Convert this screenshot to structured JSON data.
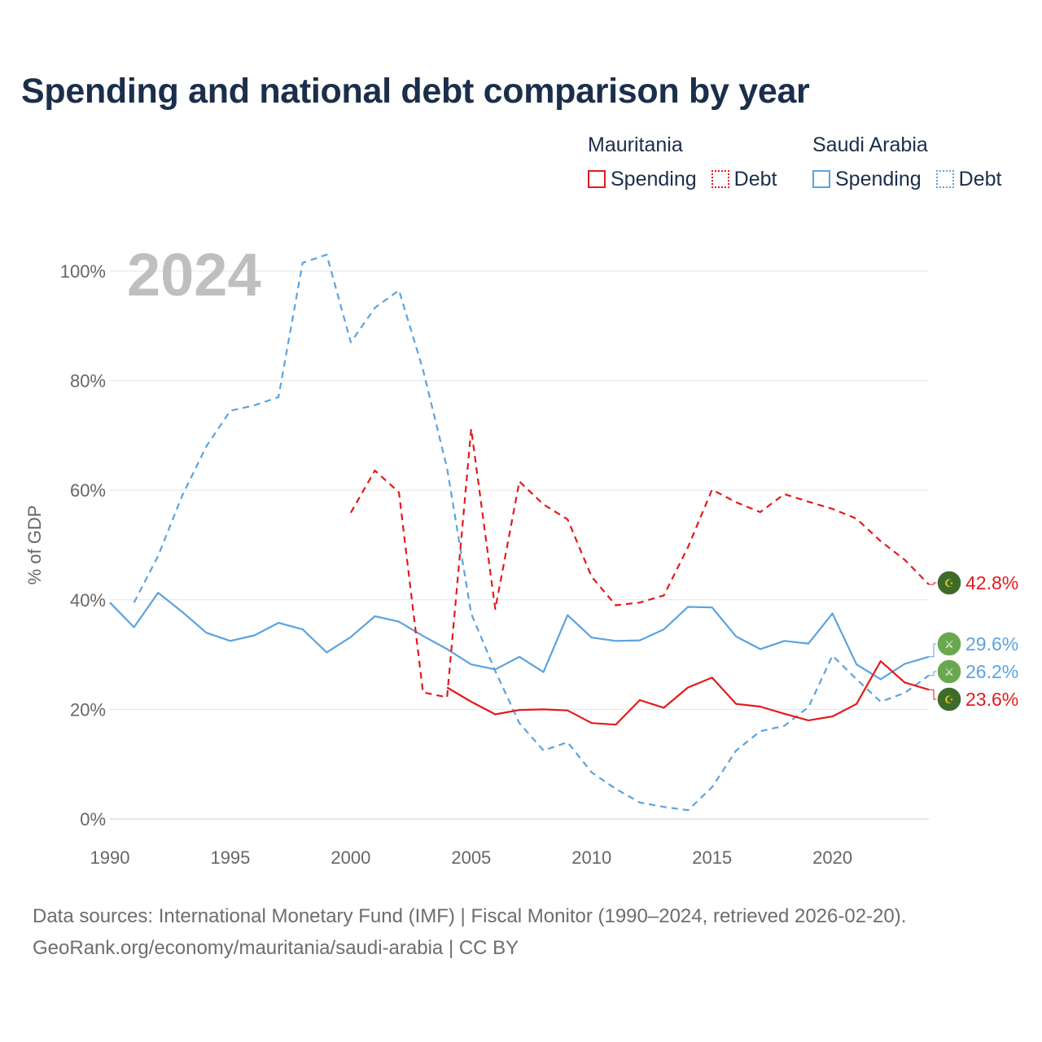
{
  "title": "Spending and national debt comparison by year",
  "legend": {
    "groups": [
      {
        "name": "Mauritania",
        "items": [
          "Spending",
          "Debt"
        ]
      },
      {
        "name": "Saudi Arabia",
        "items": [
          "Spending",
          "Debt"
        ]
      }
    ]
  },
  "colors": {
    "mauritania": "#e31a1c",
    "saudi_arabia": "#5ba3e0",
    "grid": "#e5e5e5",
    "axis_text": "#666666",
    "year_watermark": "#bfbfbf"
  },
  "footer": {
    "line1": "Data sources: International Monetary Fund (IMF) | Fiscal Monitor (1990–2024, retrieved 2026-02-20).",
    "line2": "GeoRank.org/economy/mauritania/saudi-arabia | CC BY"
  },
  "chart_data": {
    "type": "line",
    "year_label": "2024",
    "ylabel": "% of GDP",
    "xlabel": "",
    "xlim": [
      1990,
      2024
    ],
    "ylim": [
      0,
      105
    ],
    "xticks": [
      1990,
      1995,
      2000,
      2005,
      2010,
      2015,
      2020
    ],
    "yticks": [
      0,
      20,
      40,
      60,
      80,
      100
    ],
    "ytick_labels": [
      "0%",
      "20%",
      "40%",
      "60%",
      "80%",
      "100%"
    ],
    "series": [
      {
        "name": "Saudi Arabia Spending",
        "country": "Saudi Arabia",
        "metric": "Spending",
        "style": "solid",
        "color": "#5ba3e0",
        "x": [
          1990,
          1991,
          1992,
          1993,
          1994,
          1995,
          1996,
          1997,
          1998,
          1999,
          2000,
          2001,
          2002,
          2003,
          2004,
          2005,
          2006,
          2007,
          2008,
          2009,
          2010,
          2011,
          2012,
          2013,
          2014,
          2015,
          2016,
          2017,
          2018,
          2019,
          2020,
          2021,
          2022,
          2023,
          2024
        ],
        "values": [
          39.5,
          35.0,
          41.3,
          37.8,
          34.0,
          32.5,
          33.5,
          35.8,
          34.6,
          30.4,
          33.2,
          37.0,
          36.0,
          33.4,
          31.0,
          28.2,
          27.3,
          29.6,
          26.8,
          37.2,
          33.1,
          32.5,
          32.6,
          34.6,
          38.7,
          38.6,
          33.3,
          31.0,
          32.5,
          32.0,
          37.5,
          28.2,
          25.5,
          28.3,
          29.6
        ],
        "end_label": "29.6%"
      },
      {
        "name": "Saudi Arabia Debt",
        "country": "Saudi Arabia",
        "metric": "Debt",
        "style": "dashed",
        "color": "#5ba3e0",
        "x": [
          1991,
          1992,
          1993,
          1994,
          1995,
          1996,
          1997,
          1998,
          1999,
          2000,
          2001,
          2002,
          2003,
          2004,
          2005,
          2006,
          2007,
          2008,
          2009,
          2010,
          2011,
          2012,
          2013,
          2014,
          2015,
          2016,
          2017,
          2018,
          2019,
          2020,
          2021,
          2022,
          2023,
          2024
        ],
        "values": [
          39.5,
          48.0,
          59.0,
          68.0,
          74.5,
          75.5,
          77.0,
          101.5,
          103.0,
          87.0,
          93.3,
          96.5,
          82.0,
          64.0,
          37.5,
          27.0,
          17.5,
          12.5,
          14.0,
          8.5,
          5.5,
          3.0,
          2.2,
          1.6,
          5.8,
          12.5,
          16.0,
          17.0,
          20.4,
          29.8,
          25.5,
          21.4,
          23.0,
          26.2
        ],
        "end_label": "26.2%"
      },
      {
        "name": "Mauritania Spending",
        "country": "Mauritania",
        "metric": "Spending",
        "style": "solid",
        "color": "#e31a1c",
        "x": [
          2004,
          2005,
          2006,
          2007,
          2008,
          2009,
          2010,
          2011,
          2012,
          2013,
          2014,
          2015,
          2016,
          2017,
          2018,
          2019,
          2020,
          2021,
          2022,
          2023,
          2024
        ],
        "values": [
          24.0,
          21.4,
          19.1,
          19.9,
          20.0,
          19.8,
          17.5,
          17.2,
          21.7,
          20.3,
          24.0,
          25.8,
          21.0,
          20.5,
          19.2,
          18.0,
          18.7,
          21.0,
          28.8,
          24.9,
          23.6
        ],
        "end_label": "23.6%"
      },
      {
        "name": "Mauritania Debt",
        "country": "Mauritania",
        "metric": "Debt",
        "style": "dashed",
        "color": "#e31a1c",
        "x": [
          2000,
          2001,
          2002,
          2003,
          2004,
          2005,
          2006,
          2007,
          2008,
          2009,
          2010,
          2011,
          2012,
          2013,
          2014,
          2015,
          2016,
          2017,
          2018,
          2019,
          2020,
          2021,
          2022,
          2023,
          2024
        ],
        "values": [
          55.9,
          63.6,
          59.6,
          23.1,
          22.2,
          71.2,
          38.3,
          61.6,
          57.4,
          54.7,
          44.2,
          39.0,
          39.5,
          40.8,
          49.6,
          60.1,
          57.8,
          56.0,
          59.3,
          57.9,
          56.6,
          54.8,
          50.7,
          47.3,
          42.8
        ],
        "end_label": "42.8%"
      }
    ]
  }
}
